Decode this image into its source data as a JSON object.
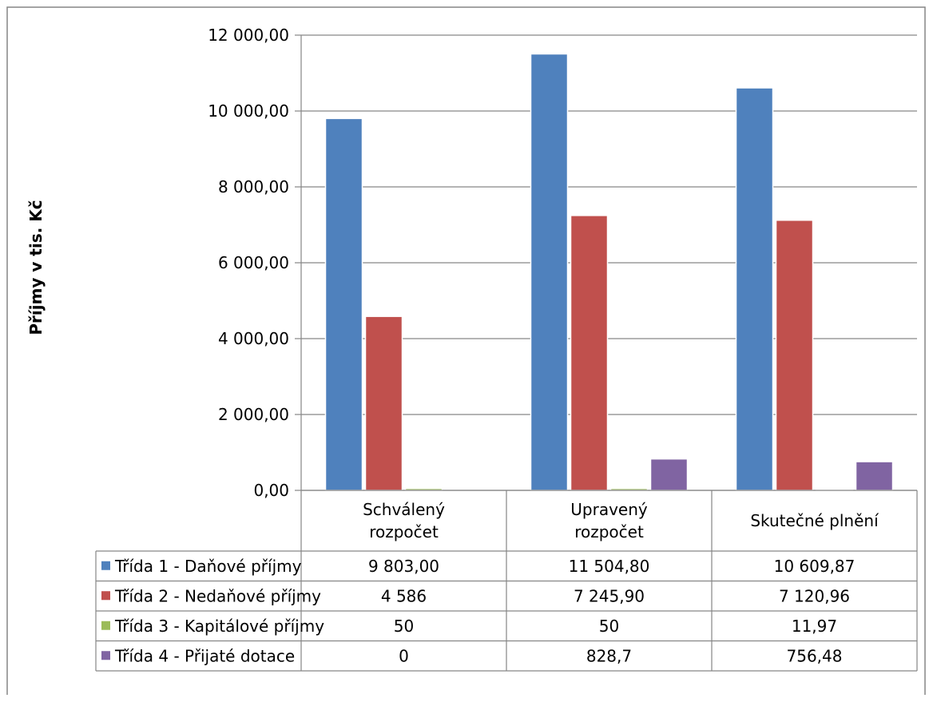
{
  "chart_data": {
    "type": "bar",
    "ylabel": "Příjmy v tis. Kč",
    "xlabel": "",
    "ylim": [
      0,
      12000
    ],
    "y_ticks": [
      0,
      2000,
      4000,
      6000,
      8000,
      10000,
      12000
    ],
    "y_tick_labels": [
      "0,00",
      "2 000,00",
      "4 000,00",
      "6 000,00",
      "8 000,00",
      "10 000,00",
      "12 000,00"
    ],
    "grid": true,
    "legend_placement": "data-table",
    "categories": [
      [
        "Schválený",
        "rozpočet"
      ],
      [
        "Upravený",
        "rozpočet"
      ],
      [
        "Skutečné plnění"
      ]
    ],
    "series": [
      {
        "name": "Třída 1 - Daňové příjmy",
        "color": "#4F81BD",
        "values": [
          9803.0,
          11504.8,
          10609.87
        ],
        "table_labels": [
          "9 803,00",
          "11 504,80",
          "10 609,87"
        ]
      },
      {
        "name": "Třída 2 - Nedaňové příjmy",
        "color": "#C0504D",
        "values": [
          4586,
          7245.9,
          7120.96
        ],
        "table_labels": [
          "4 586",
          "7 245,90",
          "7 120,96"
        ]
      },
      {
        "name": "Třída 3 - Kapitálové příjmy",
        "color": "#9BBB59",
        "values": [
          50,
          50,
          11.97
        ],
        "table_labels": [
          "50",
          "50",
          "11,97"
        ]
      },
      {
        "name": "Třída 4 - Přijaté dotace",
        "color": "#8064A2",
        "values": [
          0,
          828.7,
          756.48
        ],
        "table_labels": [
          "0",
          "828,7",
          "756,48"
        ]
      }
    ]
  }
}
